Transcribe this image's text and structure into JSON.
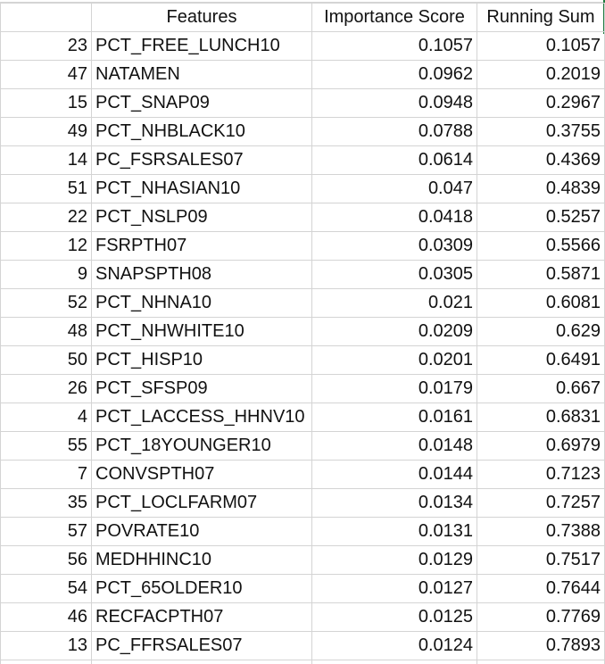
{
  "header": {
    "features": "Features",
    "importance": "Importance Score",
    "running_sum": "Running Sum"
  },
  "rows": [
    {
      "idx": "23",
      "feature": "PCT_FREE_LUNCH10",
      "importance": "0.1057",
      "sum": "0.1057"
    },
    {
      "idx": "47",
      "feature": "NATAMEN",
      "importance": "0.0962",
      "sum": "0.2019"
    },
    {
      "idx": "15",
      "feature": "PCT_SNAP09",
      "importance": "0.0948",
      "sum": "0.2967"
    },
    {
      "idx": "49",
      "feature": "PCT_NHBLACK10",
      "importance": "0.0788",
      "sum": "0.3755"
    },
    {
      "idx": "14",
      "feature": "PC_FSRSALES07",
      "importance": "0.0614",
      "sum": "0.4369"
    },
    {
      "idx": "51",
      "feature": "PCT_NHASIAN10",
      "importance": "0.047",
      "sum": "0.4839"
    },
    {
      "idx": "22",
      "feature": "PCT_NSLP09",
      "importance": "0.0418",
      "sum": "0.5257"
    },
    {
      "idx": "12",
      "feature": "FSRPTH07",
      "importance": "0.0309",
      "sum": "0.5566"
    },
    {
      "idx": "9",
      "feature": "SNAPSPTH08",
      "importance": "0.0305",
      "sum": "0.5871"
    },
    {
      "idx": "52",
      "feature": "PCT_NHNA10",
      "importance": "0.021",
      "sum": "0.6081"
    },
    {
      "idx": "48",
      "feature": "PCT_NHWHITE10",
      "importance": "0.0209",
      "sum": "0.629"
    },
    {
      "idx": "50",
      "feature": "PCT_HISP10",
      "importance": "0.0201",
      "sum": "0.6491"
    },
    {
      "idx": "26",
      "feature": "PCT_SFSP09",
      "importance": "0.0179",
      "sum": "0.667"
    },
    {
      "idx": "4",
      "feature": "PCT_LACCESS_HHNV10",
      "importance": "0.0161",
      "sum": "0.6831"
    },
    {
      "idx": "55",
      "feature": "PCT_18YOUNGER10",
      "importance": "0.0148",
      "sum": "0.6979"
    },
    {
      "idx": "7",
      "feature": "CONVSPTH07",
      "importance": "0.0144",
      "sum": "0.7123"
    },
    {
      "idx": "35",
      "feature": "PCT_LOCLFARM07",
      "importance": "0.0134",
      "sum": "0.7257"
    },
    {
      "idx": "57",
      "feature": "POVRATE10",
      "importance": "0.0131",
      "sum": "0.7388"
    },
    {
      "idx": "56",
      "feature": "MEDHHINC10",
      "importance": "0.0129",
      "sum": "0.7517"
    },
    {
      "idx": "54",
      "feature": "PCT_65OLDER10",
      "importance": "0.0127",
      "sum": "0.7644"
    },
    {
      "idx": "46",
      "feature": "RECFACPTH07",
      "importance": "0.0125",
      "sum": "0.7769"
    },
    {
      "idx": "13",
      "feature": "PC_FFRSALES07",
      "importance": "0.0124",
      "sum": "0.7893"
    },
    {
      "idx": "",
      "feature": "",
      "importance": "",
      "sum": ""
    }
  ],
  "colors": {
    "gridline": "#d4d4d4",
    "text": "#111111",
    "selection_accent": "#1f7a3f"
  }
}
